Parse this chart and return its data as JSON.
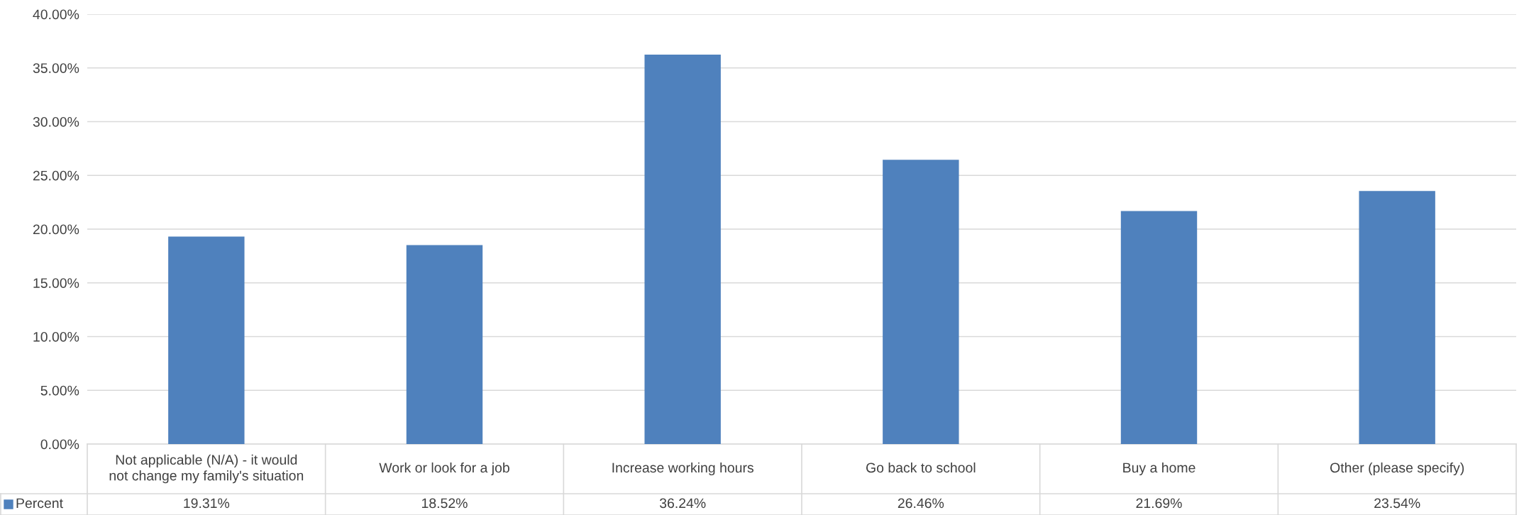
{
  "chart_data": {
    "type": "bar",
    "categories": [
      "Not applicable (N/A) - it would\nnot change my family's situation",
      "Work or look for a job",
      "Increase working hours",
      "Go back to school",
      "Buy a home",
      "Other (please specify)"
    ],
    "series": [
      {
        "name": "Percent",
        "color": "#4f81bd",
        "values": [
          19.31,
          18.52,
          36.24,
          26.46,
          21.69,
          23.54
        ],
        "value_labels": [
          "19.31%",
          "18.52%",
          "36.24%",
          "26.46%",
          "21.69%",
          "23.54%"
        ]
      }
    ],
    "ylim": [
      0,
      40
    ],
    "yticks": [
      {
        "value": 0,
        "label": "0.00%"
      },
      {
        "value": 5,
        "label": "5.00%"
      },
      {
        "value": 10,
        "label": "10.00%"
      },
      {
        "value": 15,
        "label": "15.00%"
      },
      {
        "value": 20,
        "label": "20.00%"
      },
      {
        "value": 25,
        "label": "25.00%"
      },
      {
        "value": 30,
        "label": "30.00%"
      },
      {
        "value": 35,
        "label": "35.00%"
      },
      {
        "value": 40,
        "label": "40.00%"
      }
    ],
    "grid": "y",
    "legend": "bottom left"
  }
}
